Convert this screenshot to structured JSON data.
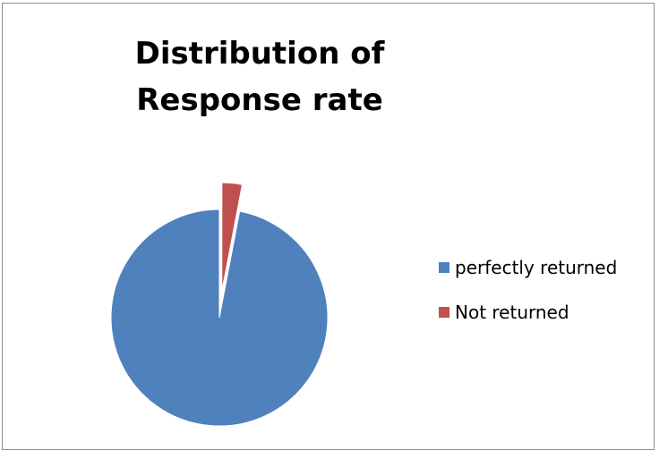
{
  "chart_data": {
    "type": "pie",
    "title": "Distribution of Response rate",
    "categories": [
      "perfectly returned",
      "Not returned"
    ],
    "values": [
      97,
      3
    ],
    "colors": [
      "#4f81bd",
      "#c0504d"
    ],
    "exploded": [
      "Not returned"
    ],
    "legend_position": "right"
  }
}
